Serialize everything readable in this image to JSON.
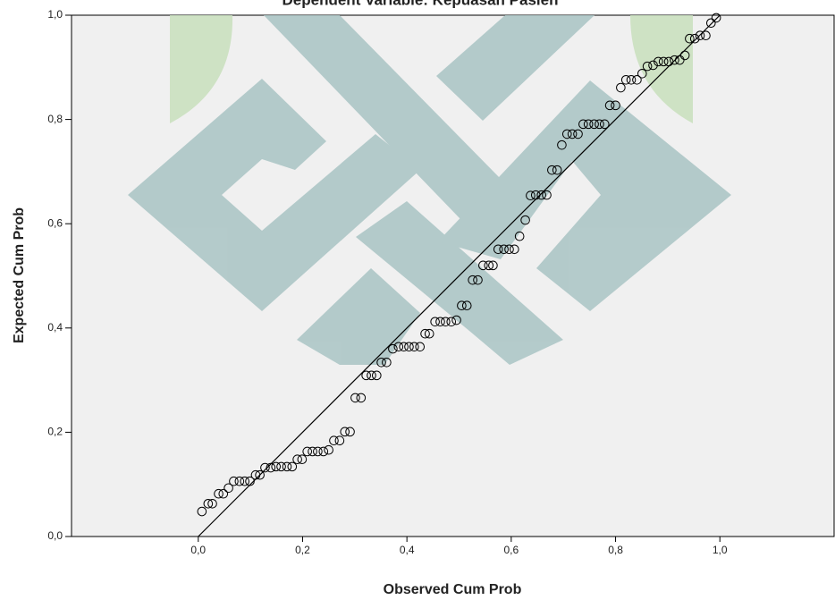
{
  "chart_data": {
    "type": "scatter",
    "title": "Dependent Variable: Kepuasan Pasien",
    "x_label": "Observed Cum Prob",
    "y_label": "Expected Cum Prob",
    "xlim": [
      -0.243,
      1.219
    ],
    "ylim": [
      0,
      1
    ],
    "xticks": [
      {
        "value": 0,
        "label": "0,0"
      },
      {
        "value": 0.2,
        "label": "0,2"
      },
      {
        "value": 0.4,
        "label": "0,4"
      },
      {
        "value": 0.6,
        "label": "0,6"
      },
      {
        "value": 0.8,
        "label": "0,8"
      },
      {
        "value": 1,
        "label": "1,0"
      }
    ],
    "yticks": [
      {
        "value": 0,
        "label": "0,0"
      },
      {
        "value": 0.2,
        "label": "0,2"
      },
      {
        "value": 0.4,
        "label": "0,4"
      },
      {
        "value": 0.6,
        "label": "0,6"
      },
      {
        "value": 0.8,
        "label": "0,8"
      },
      {
        "value": 1,
        "label": "1,0"
      }
    ],
    "color": "#000000",
    "background": "#f0f0f0",
    "reference_line": {
      "x": [
        0,
        1
      ],
      "y": [
        0,
        1
      ]
    },
    "x": [
      0.007,
      0.019,
      0.027,
      0.039,
      0.048,
      0.058,
      0.068,
      0.079,
      0.089,
      0.099,
      0.11,
      0.118,
      0.128,
      0.139,
      0.149,
      0.159,
      0.17,
      0.18,
      0.19,
      0.199,
      0.209,
      0.219,
      0.229,
      0.24,
      0.25,
      0.26,
      0.271,
      0.281,
      0.291,
      0.301,
      0.312,
      0.322,
      0.332,
      0.342,
      0.351,
      0.361,
      0.373,
      0.384,
      0.394,
      0.404,
      0.414,
      0.425,
      0.435,
      0.443,
      0.454,
      0.464,
      0.474,
      0.485,
      0.495,
      0.505,
      0.515,
      0.526,
      0.536,
      0.546,
      0.557,
      0.565,
      0.575,
      0.586,
      0.596,
      0.606,
      0.616,
      0.627,
      0.637,
      0.647,
      0.658,
      0.668,
      0.678,
      0.688,
      0.697,
      0.707,
      0.717,
      0.728,
      0.738,
      0.748,
      0.759,
      0.769,
      0.779,
      0.789,
      0.8,
      0.81,
      0.82,
      0.83,
      0.841,
      0.851,
      0.861,
      0.872,
      0.882,
      0.892,
      0.902,
      0.913,
      0.923,
      0.933,
      0.942,
      0.952,
      0.962,
      0.973,
      0.983,
      0.993
    ],
    "values": [
      0.048,
      0.063,
      0.063,
      0.082,
      0.082,
      0.093,
      0.106,
      0.106,
      0.106,
      0.106,
      0.118,
      0.118,
      0.132,
      0.132,
      0.134,
      0.134,
      0.134,
      0.134,
      0.148,
      0.148,
      0.163,
      0.163,
      0.163,
      0.163,
      0.166,
      0.184,
      0.184,
      0.201,
      0.201,
      0.266,
      0.266,
      0.309,
      0.309,
      0.309,
      0.334,
      0.334,
      0.36,
      0.364,
      0.364,
      0.364,
      0.364,
      0.364,
      0.389,
      0.389,
      0.412,
      0.412,
      0.412,
      0.412,
      0.415,
      0.443,
      0.443,
      0.492,
      0.492,
      0.52,
      0.52,
      0.52,
      0.551,
      0.551,
      0.551,
      0.551,
      0.576,
      0.607,
      0.654,
      0.655,
      0.655,
      0.655,
      0.703,
      0.703,
      0.751,
      0.772,
      0.772,
      0.772,
      0.791,
      0.791,
      0.791,
      0.791,
      0.791,
      0.827,
      0.827,
      0.861,
      0.876,
      0.876,
      0.876,
      0.888,
      0.902,
      0.904,
      0.911,
      0.911,
      0.911,
      0.914,
      0.914,
      0.923,
      0.955,
      0.955,
      0.961,
      0.961,
      0.985,
      0.995
    ]
  }
}
